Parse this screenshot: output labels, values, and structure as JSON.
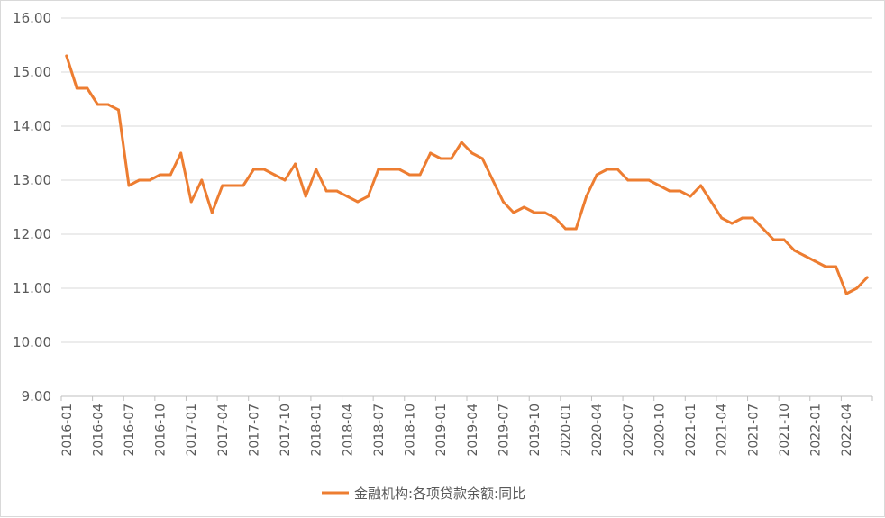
{
  "chart_data": {
    "type": "line",
    "title": "",
    "xlabel": "",
    "ylabel": "",
    "ylim": [
      9,
      16
    ],
    "y_ticks": [
      "9.00",
      "10.00",
      "11.00",
      "12.00",
      "13.00",
      "14.00",
      "15.00",
      "16.00"
    ],
    "x_tick_labels": [
      "2016-01",
      "2016-04",
      "2016-07",
      "2016-10",
      "2017-01",
      "2017-04",
      "2017-07",
      "2017-10",
      "2018-01",
      "2018-04",
      "2018-07",
      "2018-10",
      "2019-01",
      "2019-04",
      "2019-07",
      "2019-10",
      "2020-01",
      "2020-04",
      "2020-07",
      "2020-10",
      "2021-01",
      "2021-04",
      "2021-07",
      "2021-10",
      "2022-01",
      "2022-04"
    ],
    "grid": true,
    "legend_position": "bottom",
    "colors": {
      "series": "#ED7D31",
      "grid": "#d9d9d9",
      "axis": "#bfbfbf",
      "text": "#595959"
    },
    "series": [
      {
        "name": "金融机构:各项贷款余额:同比",
        "x": [
          "2016-01",
          "2016-02",
          "2016-03",
          "2016-04",
          "2016-05",
          "2016-06",
          "2016-07",
          "2016-08",
          "2016-09",
          "2016-10",
          "2016-11",
          "2016-12",
          "2017-01",
          "2017-02",
          "2017-03",
          "2017-04",
          "2017-05",
          "2017-06",
          "2017-07",
          "2017-08",
          "2017-09",
          "2017-10",
          "2017-11",
          "2017-12",
          "2018-01",
          "2018-02",
          "2018-03",
          "2018-04",
          "2018-05",
          "2018-06",
          "2018-07",
          "2018-08",
          "2018-09",
          "2018-10",
          "2018-11",
          "2018-12",
          "2019-01",
          "2019-02",
          "2019-03",
          "2019-04",
          "2019-05",
          "2019-06",
          "2019-07",
          "2019-08",
          "2019-09",
          "2019-10",
          "2019-11",
          "2019-12",
          "2020-01",
          "2020-02",
          "2020-03",
          "2020-04",
          "2020-05",
          "2020-06",
          "2020-07",
          "2020-08",
          "2020-09",
          "2020-10",
          "2020-11",
          "2020-12",
          "2021-01",
          "2021-02",
          "2021-03",
          "2021-04",
          "2021-05",
          "2021-06",
          "2021-07",
          "2021-08",
          "2021-09",
          "2021-10",
          "2021-11",
          "2021-12",
          "2022-01",
          "2022-02",
          "2022-03",
          "2022-04",
          "2022-05",
          "2022-06"
        ],
        "values": [
          15.3,
          14.7,
          14.7,
          14.4,
          14.4,
          14.3,
          12.9,
          13.0,
          13.0,
          13.1,
          13.1,
          13.5,
          12.6,
          13.0,
          12.4,
          12.9,
          12.9,
          12.9,
          13.2,
          13.2,
          13.1,
          13.0,
          13.3,
          12.7,
          13.2,
          12.8,
          12.8,
          12.7,
          12.6,
          12.7,
          13.2,
          13.2,
          13.2,
          13.1,
          13.1,
          13.5,
          13.4,
          13.4,
          13.7,
          13.5,
          13.4,
          13.0,
          12.6,
          12.4,
          12.5,
          12.4,
          12.4,
          12.3,
          12.1,
          12.1,
          12.7,
          13.1,
          13.2,
          13.2,
          13.0,
          13.0,
          13.0,
          12.9,
          12.8,
          12.8,
          12.7,
          12.9,
          12.6,
          12.3,
          12.2,
          12.3,
          12.3,
          12.1,
          11.9,
          11.9,
          11.7,
          11.6,
          11.5,
          11.4,
          11.4,
          10.9,
          11.0,
          11.2
        ]
      }
    ]
  }
}
